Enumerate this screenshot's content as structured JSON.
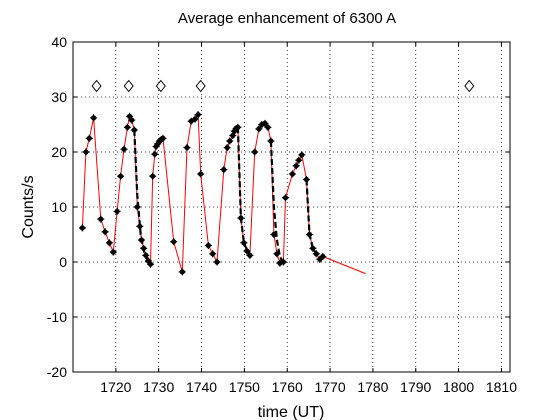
{
  "chart_data": {
    "type": "line",
    "title": "Average enhancement of 6300 A",
    "xlabel": "time (UT)",
    "ylabel": "Counts/s",
    "xlim": [
      1710,
      1812
    ],
    "ylim": [
      -20,
      40
    ],
    "xticks": [
      1720,
      1730,
      1740,
      1750,
      1760,
      1770,
      1780,
      1790,
      1800,
      1810
    ],
    "yticks": [
      -20,
      -10,
      0,
      10,
      20,
      30,
      40
    ],
    "grid": true,
    "legend": "none",
    "colors": {
      "line": "#ff0000",
      "marker": "#000000",
      "dashed": "#000000"
    },
    "series": [
      {
        "style": "red-line-star-markers",
        "x": [
          1712.2,
          1713.0,
          1713.8,
          1714.8,
          1716.5,
          1717.5,
          1718.5,
          1719.4,
          1720.3,
          1721.1,
          1721.9,
          1722.7,
          1723.2,
          1723.7,
          1724.3,
          1725.0,
          1725.6,
          1726.0,
          1726.5,
          1727.0,
          1727.6,
          1728.1,
          1728.6,
          1729.1,
          1729.4,
          1729.8,
          1730.2,
          1730.6,
          1731.0,
          1733.5,
          1735.5,
          1736.6,
          1737.6,
          1738.5,
          1739.2,
          1739.8,
          1741.6,
          1742.6,
          1743.6,
          1745.2,
          1746.0,
          1746.6,
          1747.3,
          1747.7,
          1748.1,
          1748.5,
          1749.2,
          1749.9,
          1750.6,
          1751.3,
          1752.4,
          1753.4,
          1754.1,
          1754.8,
          1755.5,
          1756.2,
          1756.9,
          1757.6,
          1758.3,
          1759.1,
          1759.6,
          1761.2,
          1762.1,
          1762.7,
          1763.4,
          1764.5,
          1765.2,
          1766.0,
          1766.8,
          1767.6,
          1768.3,
          1778.3
        ],
        "y": [
          6.2,
          20.0,
          22.5,
          26.2,
          7.8,
          5.5,
          3.5,
          1.8,
          9.2,
          15.6,
          20.5,
          24.5,
          26.5,
          25.8,
          24.0,
          10.0,
          6.5,
          4.0,
          2.5,
          1.2,
          0.2,
          -0.4,
          15.6,
          19.6,
          21.0,
          21.5,
          22.0,
          22.3,
          22.5,
          3.7,
          -1.8,
          20.8,
          25.6,
          26.0,
          26.8,
          16.0,
          3.0,
          1.5,
          0.0,
          16.8,
          20.8,
          22.0,
          23.0,
          23.8,
          24.3,
          24.5,
          8.0,
          3.5,
          2.0,
          1.2,
          20.0,
          24.2,
          25.0,
          25.2,
          24.5,
          22.0,
          5.0,
          1.5,
          -0.2,
          0.0,
          11.7,
          16.0,
          17.5,
          18.5,
          19.5,
          15.0,
          5.0,
          2.5,
          1.5,
          0.5,
          1.0,
          -2.1
        ]
      },
      {
        "style": "black-dashed",
        "x": [
          1724.3,
          1725.0,
          1725.8,
          1726.6,
          1727.4,
          1728.1
        ],
        "y": [
          24.0,
          12.0,
          5.0,
          1.8,
          0.5,
          -0.4
        ]
      },
      {
        "style": "black-dashed",
        "x": [
          1748.5,
          1749.2,
          1749.9,
          1750.7,
          1751.5
        ],
        "y": [
          24.5,
          8.0,
          3.5,
          2.0,
          1.3
        ]
      },
      {
        "style": "black-dashed",
        "x": [
          1756.2,
          1756.9,
          1757.6,
          1758.3,
          1759.0
        ],
        "y": [
          22.0,
          10.0,
          4.0,
          1.0,
          0.0
        ]
      },
      {
        "style": "black-dashed",
        "x": [
          1764.5,
          1765.2,
          1766.0,
          1766.8
        ],
        "y": [
          15.0,
          5.0,
          2.5,
          1.5
        ]
      }
    ],
    "diamond_markers": {
      "x": [
        1715.5,
        1723.0,
        1730.5,
        1739.8,
        1802.5
      ],
      "y": [
        32,
        32,
        32,
        32,
        32
      ]
    }
  }
}
